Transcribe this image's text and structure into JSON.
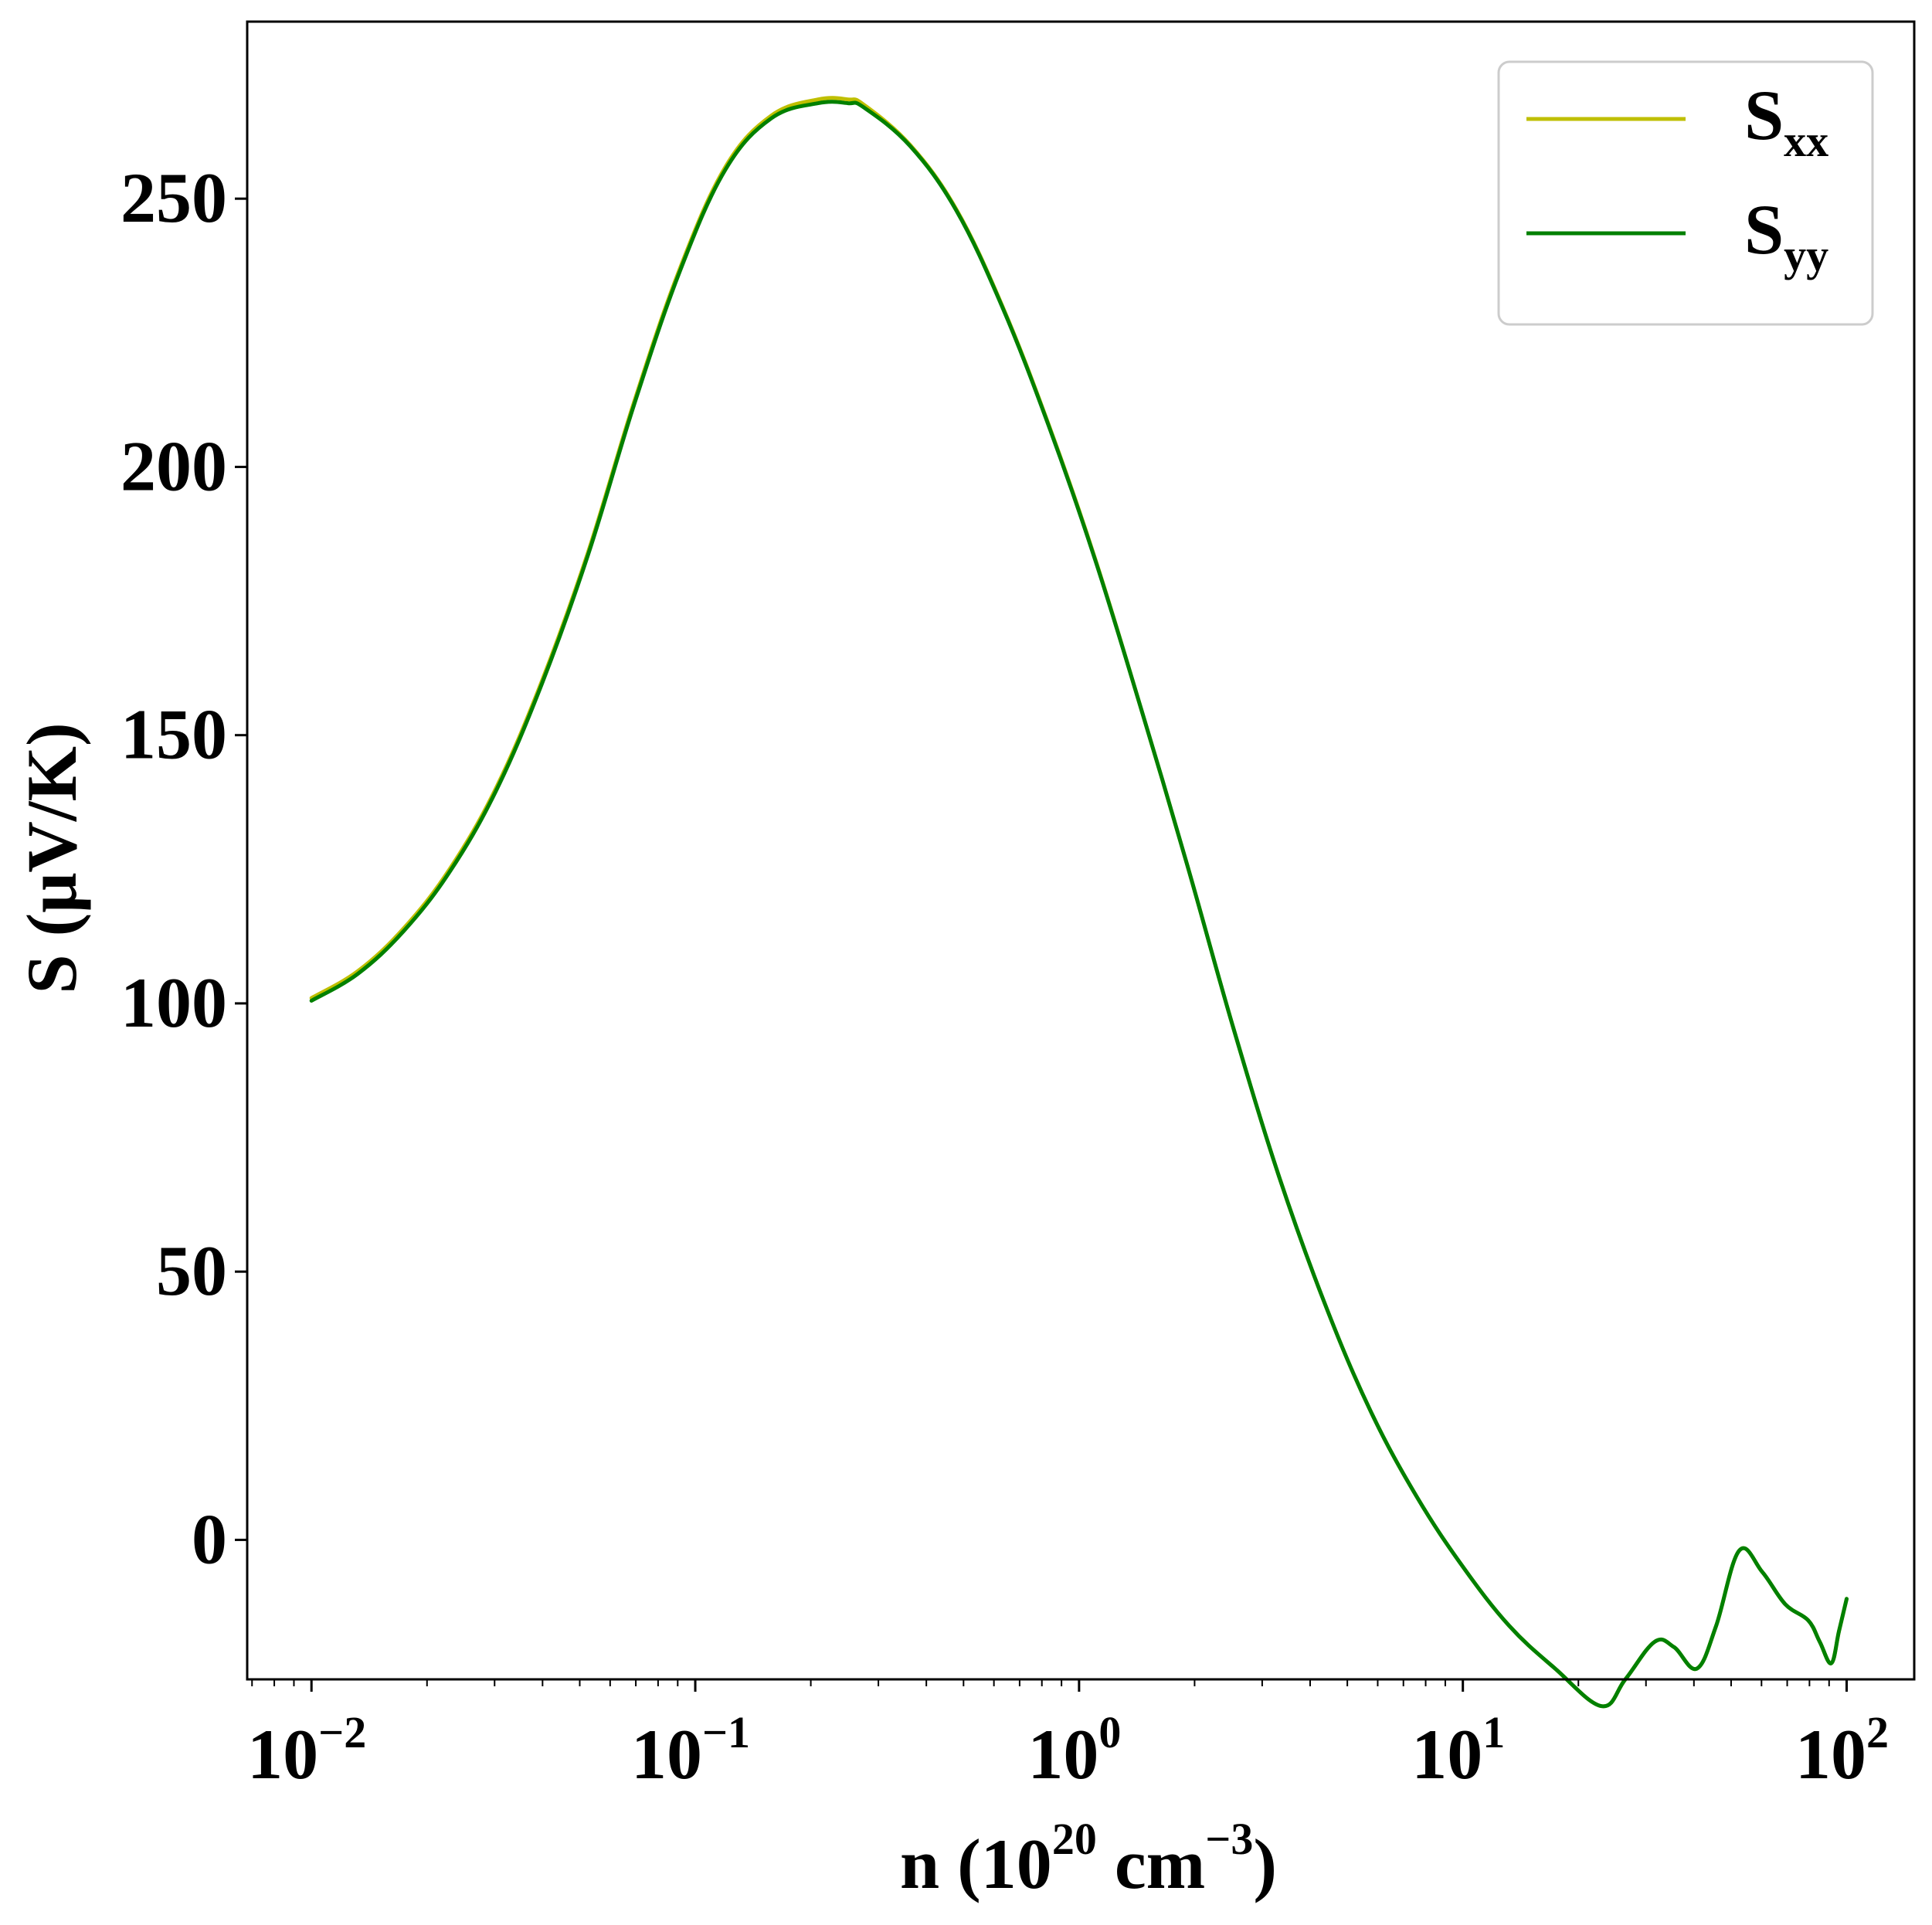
{
  "chart_data": {
    "type": "line",
    "xscale": "log",
    "xlim": [
      0.0068,
      150
    ],
    "ylim": [
      -26,
      283
    ],
    "xlabel": {
      "base": "n (10",
      "sup1": "20",
      "mid": " cm",
      "sup2": "−3",
      "end": ")"
    },
    "ylabel": "S (μV/K)",
    "xticks": [
      {
        "value": 0.01,
        "base": "10",
        "exp": "−2"
      },
      {
        "value": 0.1,
        "base": "10",
        "exp": "−1"
      },
      {
        "value": 1,
        "base": "10",
        "exp": "0"
      },
      {
        "value": 10,
        "base": "10",
        "exp": "1"
      },
      {
        "value": 100,
        "base": "10",
        "exp": "2"
      }
    ],
    "yticks": [
      {
        "value": 0,
        "label": "0"
      },
      {
        "value": 50,
        "label": "50"
      },
      {
        "value": 100,
        "label": "100"
      },
      {
        "value": 150,
        "label": "150"
      },
      {
        "value": 200,
        "label": "200"
      },
      {
        "value": 250,
        "label": "250"
      }
    ],
    "grid": false,
    "legend": {
      "position": "top-right"
    },
    "series": [
      {
        "name": "S",
        "sub": "xx",
        "color": "#bfbf00",
        "x": [
          0.01,
          0.0132,
          0.0174,
          0.0229,
          0.0302,
          0.0398,
          0.0525,
          0.0692,
          0.0912,
          0.12,
          0.158,
          0.209,
          0.25,
          0.275,
          0.363,
          0.479,
          0.631,
          0.832,
          1.1,
          1.45,
          1.91,
          2.51,
          3.31,
          4.37,
          5.75,
          7.59,
          10,
          13.2,
          17.4,
          23,
          26.5,
          31.6,
          35.5,
          40.7,
          45.7,
          52.5,
          60.3,
          69.2,
          79.4,
          85.1,
          91.2,
          95.5,
          100
        ],
        "y": [
          101,
          106,
          114,
          125,
          140,
          160,
          184,
          212,
          237,
          256,
          265.5,
          268.5,
          268.5,
          267.5,
          260,
          248,
          230,
          208,
          183,
          155,
          126,
          96,
          68,
          44,
          24,
          8,
          -5,
          -16,
          -24,
          -31,
          -26,
          -19,
          -20,
          -24,
          -16,
          -2,
          -6,
          -12,
          -15,
          -19,
          -23,
          -17,
          -11
        ],
        "y_offset_note": "",
        "line_values_scaled": false
      },
      {
        "name": "S",
        "sub": "yy",
        "color": "#008000",
        "x": [
          0.01,
          0.0132,
          0.0174,
          0.0229,
          0.0302,
          0.0398,
          0.0525,
          0.0692,
          0.0912,
          0.12,
          0.158,
          0.209,
          0.25,
          0.275,
          0.363,
          0.479,
          0.631,
          0.832,
          1.1,
          1.45,
          1.91,
          2.51,
          3.31,
          4.37,
          5.75,
          7.59,
          10,
          13.2,
          17.4,
          23,
          26.5,
          31.6,
          35.5,
          40.7,
          45.7,
          52.5,
          60.3,
          69.2,
          79.4,
          85.1,
          91.2,
          95.5,
          100
        ],
        "y": [
          100.5,
          105.5,
          113.5,
          124.5,
          139.5,
          159.5,
          183.5,
          211.5,
          236.5,
          255.5,
          265,
          267.8,
          267.8,
          267,
          259.8,
          247.8,
          229.8,
          207.8,
          182.8,
          155,
          126,
          96,
          68,
          44,
          24,
          8,
          -5,
          -16,
          -24,
          -31,
          -26,
          -19,
          -20,
          -24,
          -16,
          -2,
          -6,
          -12,
          -15,
          -19,
          -23,
          -17,
          -11
        ]
      }
    ]
  }
}
